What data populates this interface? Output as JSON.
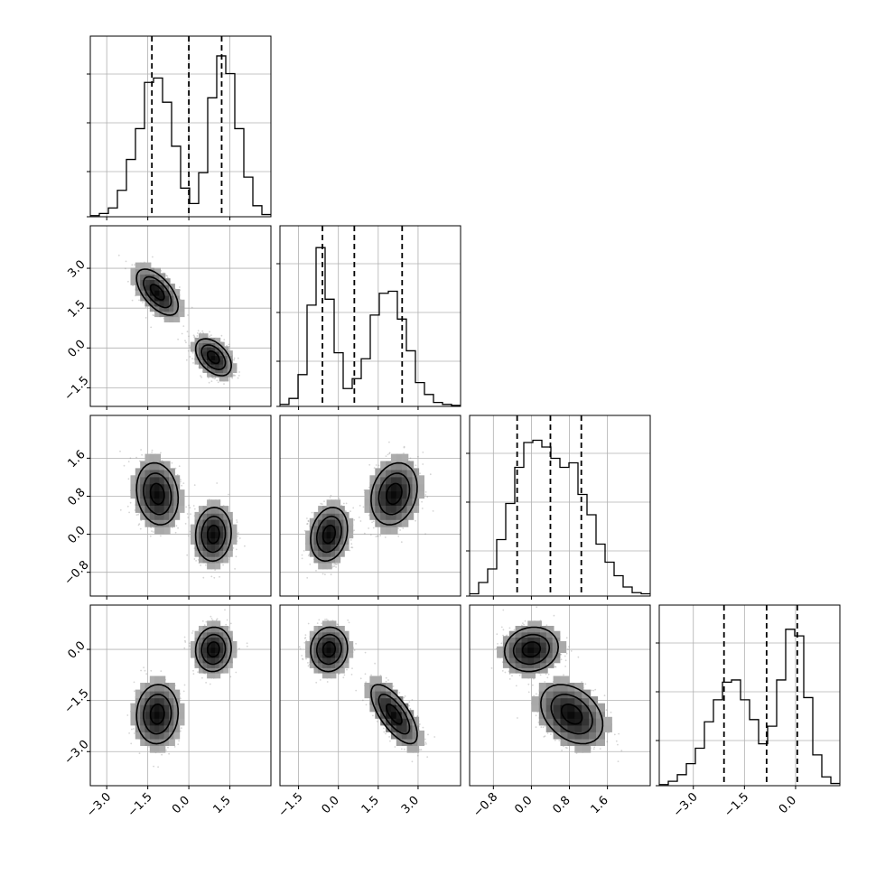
{
  "chart_data": {
    "type": "corner",
    "variables": [
      {
        "range": [
          -3.6,
          3.0
        ],
        "ticks": [
          -3.0,
          -1.5,
          0.0,
          1.5
        ],
        "tick_labels": [
          "−3.0",
          "−1.5",
          "0.0",
          "1.5"
        ],
        "quantiles": [
          -1.35,
          0.0,
          1.2
        ]
      },
      {
        "range": [
          -2.2,
          4.6
        ],
        "ticks": [
          -1.5,
          0.0,
          1.5,
          3.0
        ],
        "tick_labels": [
          "−1.5",
          "0.0",
          "1.5",
          "3.0"
        ],
        "quantiles": [
          -0.6,
          0.6,
          2.4
        ]
      },
      {
        "range": [
          -1.3,
          2.5
        ],
        "ticks": [
          -0.8,
          0.0,
          0.8,
          1.6
        ],
        "tick_labels": [
          "−0.8",
          "0.0",
          "0.8",
          "1.6"
        ],
        "quantiles": [
          -0.3,
          0.4,
          1.05
        ]
      },
      {
        "range": [
          -4.0,
          1.3
        ],
        "ticks": [
          -3.0,
          -1.5,
          0.0
        ],
        "tick_labels": [
          "−3.0",
          "−1.5",
          "0.0"
        ],
        "quantiles": [
          -2.1,
          -0.85,
          0.05
        ]
      }
    ],
    "histograms": [
      {
        "edges": [
          -3.6,
          -3.27,
          -2.94,
          -2.61,
          -2.28,
          -1.95,
          -1.62,
          -1.29,
          -0.96,
          -0.63,
          -0.3,
          0.03,
          0.36,
          0.69,
          1.02,
          1.35,
          1.68,
          2.01,
          2.34,
          2.67,
          3.0
        ],
        "counts": [
          0.5,
          1.5,
          4,
          12,
          26,
          40,
          61,
          63,
          52,
          32,
          13,
          6,
          20,
          54,
          73,
          65,
          40,
          18,
          5,
          1
        ]
      },
      {
        "edges": [
          -2.2,
          -1.86,
          -1.52,
          -1.18,
          -0.84,
          -0.5,
          -0.16,
          0.18,
          0.52,
          0.86,
          1.2,
          1.54,
          1.88,
          2.22,
          2.56,
          2.9,
          3.24,
          3.58,
          3.92,
          4.26,
          4.6
        ],
        "counts": [
          1,
          4,
          16,
          51,
          80,
          54,
          27,
          9,
          14,
          24,
          46,
          57,
          58,
          44,
          28,
          12,
          6,
          2,
          1,
          0.5
        ]
      },
      {
        "edges": [
          -1.3,
          -1.11,
          -0.92,
          -0.73,
          -0.54,
          -0.35,
          -0.16,
          0.03,
          0.22,
          0.41,
          0.6,
          0.79,
          0.98,
          1.17,
          1.36,
          1.55,
          1.74,
          1.93,
          2.12,
          2.31,
          2.5
        ],
        "counts": [
          1,
          6,
          12,
          25,
          41,
          57,
          68,
          69,
          66,
          61,
          57,
          59,
          45,
          36,
          23,
          15,
          9,
          4,
          1.5,
          1
        ]
      },
      {
        "edges": [
          -4.0,
          -3.735,
          -3.47,
          -3.205,
          -2.94,
          -2.675,
          -2.41,
          -2.145,
          -1.88,
          -1.615,
          -1.35,
          -1.085,
          -0.82,
          -0.555,
          -0.29,
          -0.025,
          0.24,
          0.505,
          0.77,
          1.035,
          1.3
        ],
        "counts": [
          0.5,
          2,
          5,
          10,
          17,
          29,
          39,
          47,
          48,
          39,
          30,
          19,
          27,
          48,
          71,
          68,
          40,
          14,
          4,
          1
        ]
      }
    ],
    "hist_ymax": [
      82,
      91,
      80,
      82
    ],
    "modes": [
      [
        -1.15,
        2.1,
        0.85,
        -1.9
      ],
      [
        0.9,
        -0.35,
        0.0,
        0.0
      ]
    ],
    "mode_sigmas": [
      [
        0.35,
        0.4,
        0.3,
        0.4
      ],
      [
        0.3,
        0.32,
        0.26,
        0.3
      ]
    ],
    "mode_correlations": [
      [
        0,
        -0.6,
        -0.15,
        0.05,
        0.2,
        -0.7,
        -0.35
      ],
      [
        0,
        -0.45,
        0.05,
        0.05,
        0.2,
        0.05,
        0.1
      ]
    ],
    "contour_levels": [
      0.5,
      1.0,
      1.5
    ],
    "mode_weights": [
      0.5,
      0.5
    ],
    "grid": true
  }
}
